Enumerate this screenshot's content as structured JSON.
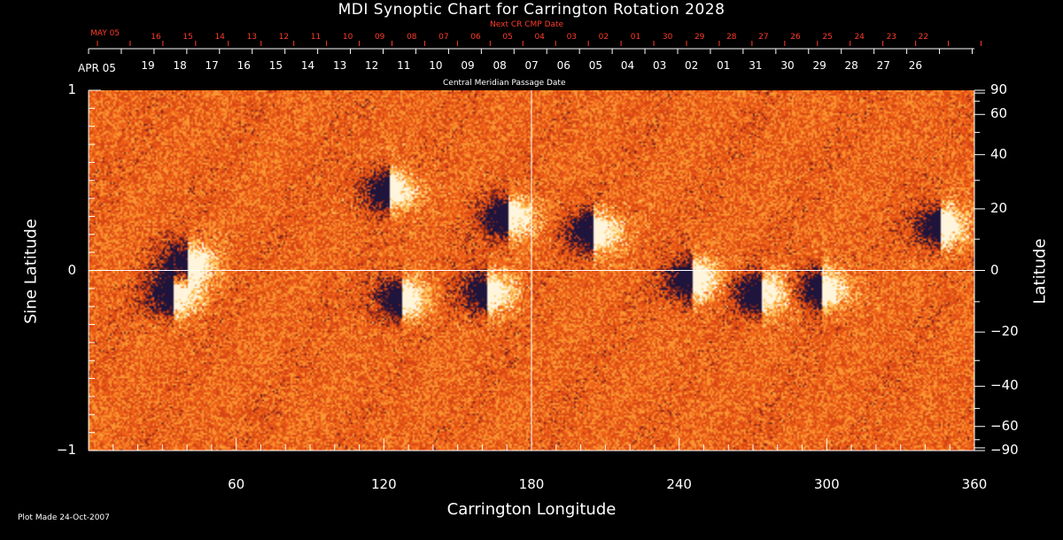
{
  "chart_data": {
    "type": "heatmap",
    "title": "MDI Synoptic Chart for Carrington Rotation 2028",
    "xlabel": "Carrington Longitude",
    "ylabel_left": "Sine Latitude",
    "ylabel_right": "Latitude",
    "xlim": [
      0,
      360
    ],
    "ylim": [
      -1,
      1
    ],
    "x_ticks": [
      "60",
      "120",
      "180",
      "240",
      "300",
      "360"
    ],
    "y_ticks_left": [
      "1",
      "0",
      "−1"
    ],
    "y_ticks_right": [
      "90",
      "60",
      "40",
      "20",
      "0",
      "−20",
      "−40",
      "−60",
      "−90"
    ],
    "top_axis_label": "Central Meridian Passage Date",
    "top_axis_start": "APR 05",
    "top_axis_days": [
      "19",
      "18",
      "17",
      "16",
      "15",
      "14",
      "13",
      "12",
      "11",
      "10",
      "09",
      "08",
      "07",
      "06",
      "05",
      "04",
      "03",
      "02",
      "01",
      "31",
      "30",
      "29",
      "28",
      "27",
      "26"
    ],
    "next_axis_label": "Next CR CMP Date",
    "next_axis_start": "MAY 05",
    "next_axis_days": [
      "16",
      "15",
      "14",
      "13",
      "12",
      "11",
      "10",
      "09",
      "08",
      "07",
      "06",
      "05",
      "04",
      "03",
      "02",
      "01",
      "30",
      "29",
      "28",
      "27",
      "26",
      "25",
      "24",
      "23",
      "22"
    ],
    "regions": [
      {
        "lon": 40,
        "sinlat": 0.04
      },
      {
        "lon": 34,
        "sinlat": -0.13
      },
      {
        "lon": 122,
        "sinlat": 0.45
      },
      {
        "lon": 127,
        "sinlat": -0.15
      },
      {
        "lon": 162,
        "sinlat": -0.12
      },
      {
        "lon": 170,
        "sinlat": 0.3
      },
      {
        "lon": 205,
        "sinlat": 0.22
      },
      {
        "lon": 245,
        "sinlat": -0.05
      },
      {
        "lon": 273,
        "sinlat": -0.12
      },
      {
        "lon": 298,
        "sinlat": -0.1
      },
      {
        "lon": 346,
        "sinlat": 0.25
      }
    ]
  },
  "footer": {
    "plot_made": "Plot Made 24-Oct-2007"
  }
}
